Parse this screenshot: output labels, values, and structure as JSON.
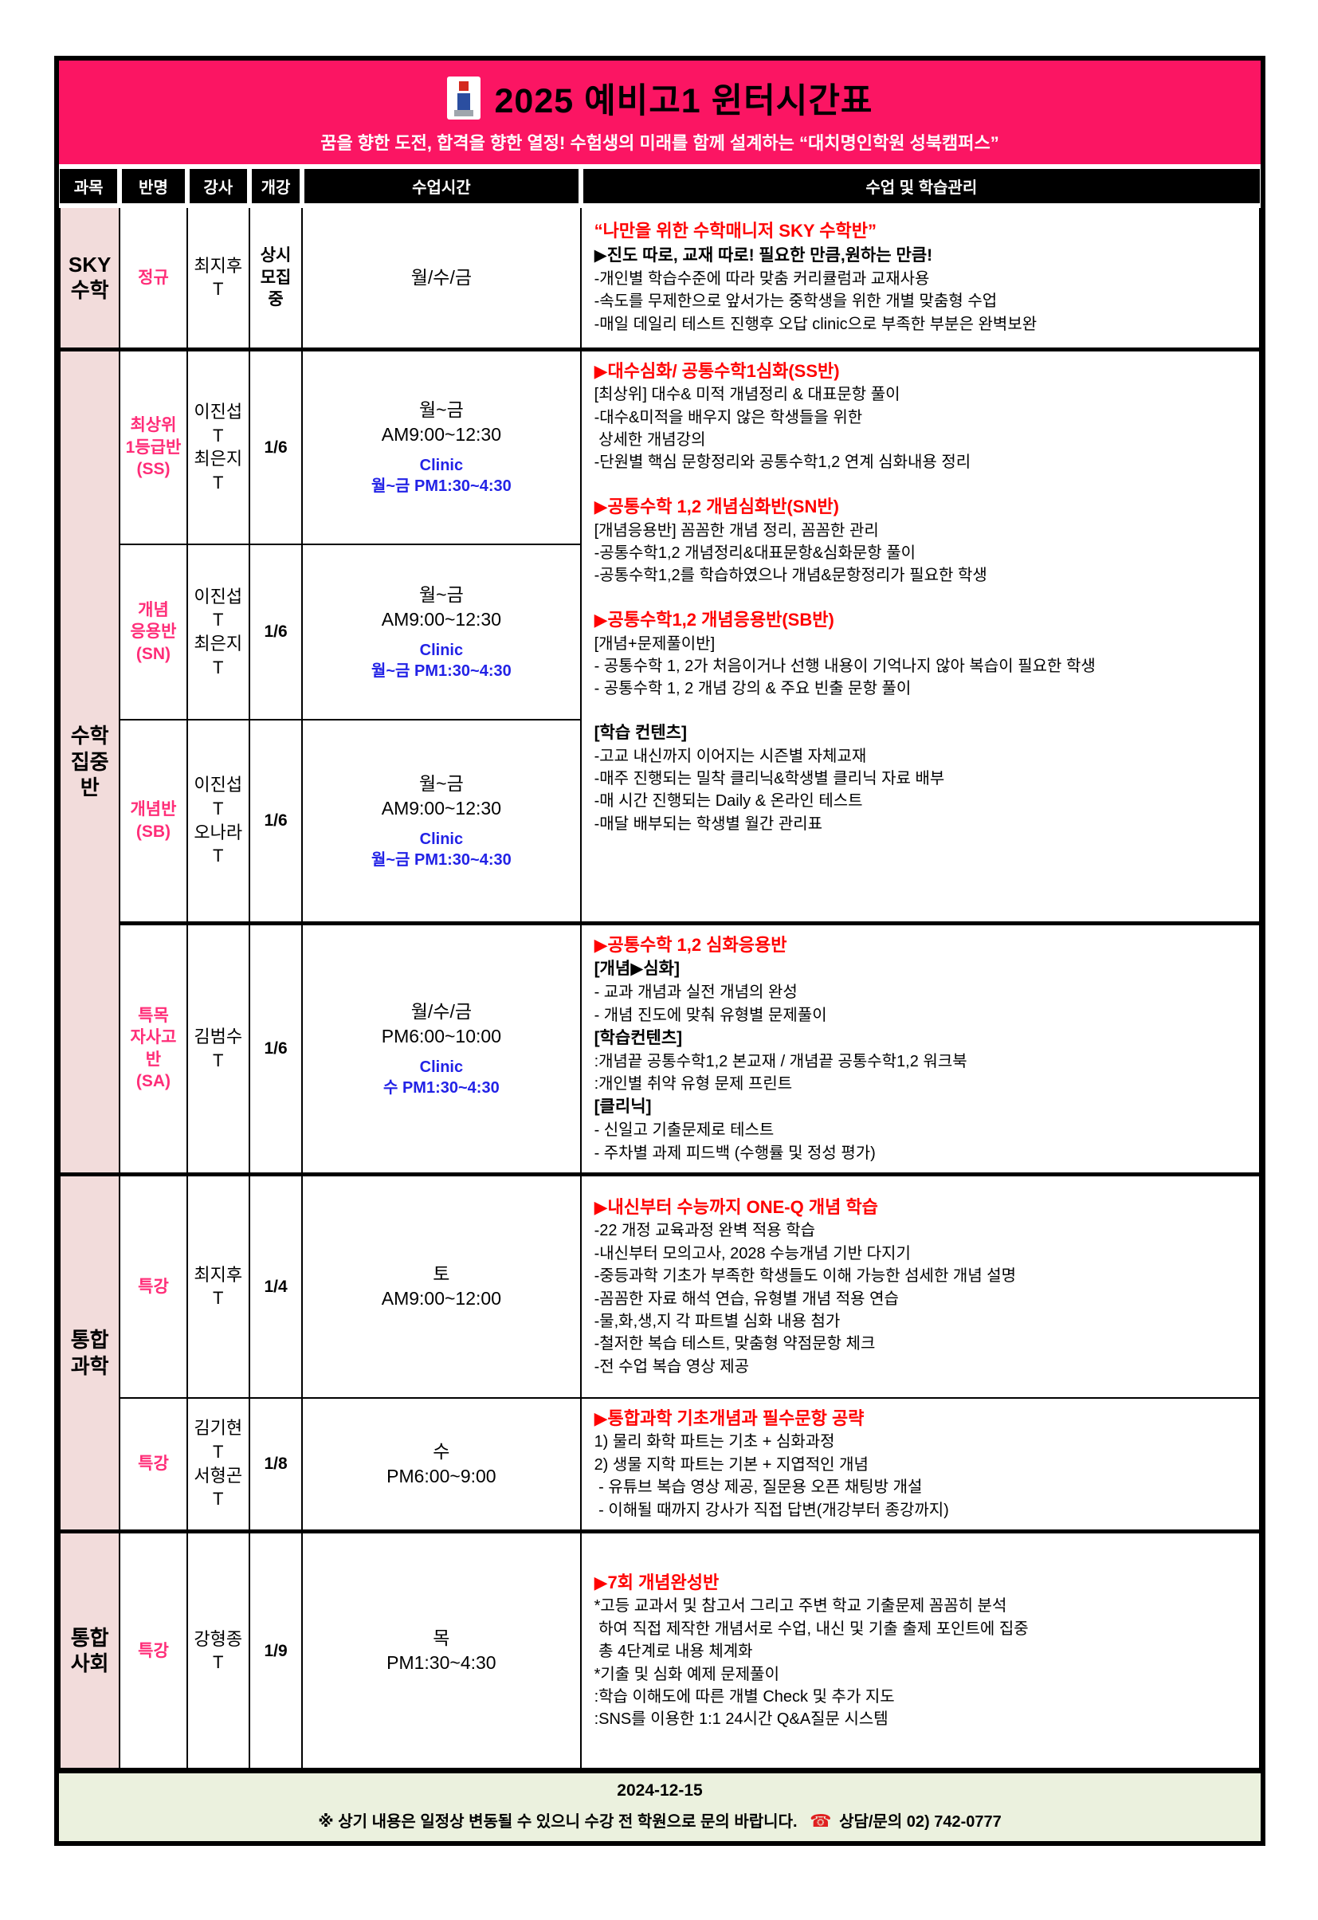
{
  "banner": {
    "title": "2025 예비고1 윈터시간표",
    "subtitle": "꿈을 향한 도전, 합격을 향한 열정! 수험생의 미래를 함께 설계하는 “대치명인학원 성북캠퍼스”"
  },
  "table": {
    "columns": [
      "과목",
      "반명",
      "강사",
      "개강",
      "수업시간",
      "수업 및 학습관리"
    ]
  },
  "rows": {
    "sky": {
      "subject": [
        "SKY",
        "수학"
      ],
      "class_name": "정규",
      "teachers": [
        "최지후T"
      ],
      "start": [
        "상시",
        "모집중"
      ],
      "schedule_main": [
        "월/수/금"
      ],
      "schedule_clinic": [],
      "desc": [
        [
          {
            "s": "r",
            "t": "“나만을 위한 수학매니저 SKY 수학반”"
          },
          {
            "s": "b",
            "t": "▶진도 따로, 교재 따로! 필요한 만큼,원하는 만큼!"
          },
          {
            "s": "n",
            "t": "-개인별 학습수준에 따라 맞춤 커리큘럼과 교재사용"
          },
          {
            "s": "n",
            "t": "-속도를 무제한으로 앞서가는 중학생을 위한 개별 맞춤형 수업"
          },
          {
            "s": "n",
            "t": "-매일 데일리 테스트 진행후 오답 clinic으로 부족한 부분은 완벽보완"
          }
        ]
      ]
    },
    "math_group_subject": [
      "수학",
      "집중반"
    ],
    "ss": {
      "class_name": [
        "최상위",
        "1등급반",
        "(SS)"
      ],
      "teachers": [
        "이진섭T",
        "최은지T"
      ],
      "start": [
        "1/6"
      ],
      "schedule_main": [
        "월~금",
        "AM9:00~12:30"
      ],
      "schedule_clinic": [
        "Clinic",
        "월~금 PM1:30~4:30"
      ]
    },
    "sn": {
      "class_name": [
        "개념",
        "응용반",
        "(SN)"
      ],
      "teachers": [
        "이진섭T",
        "최은지T"
      ],
      "start": [
        "1/6"
      ],
      "schedule_main": [
        "월~금",
        "AM9:00~12:30"
      ],
      "schedule_clinic": [
        "Clinic",
        "월~금 PM1:30~4:30"
      ]
    },
    "sb": {
      "class_name": [
        "개념반",
        "(SB)"
      ],
      "teachers": [
        "이진섭T",
        "오나라T"
      ],
      "start": [
        "1/6"
      ],
      "schedule_main": [
        "월~금",
        "AM9:00~12:30"
      ],
      "schedule_clinic": [
        "Clinic",
        "월~금 PM1:30~4:30"
      ]
    },
    "math_merged_desc": [
      [
        {
          "s": "r",
          "t": "▶대수심화/ 공통수학1심화(SS반)"
        },
        {
          "s": "n",
          "t": "[최상위] 대수& 미적 개념정리 & 대표문항 풀이"
        },
        {
          "s": "n",
          "t": "-대수&미적을 배우지 않은 학생들을 위한"
        },
        {
          "s": "n",
          "t": " 상세한 개념강의"
        },
        {
          "s": "n",
          "t": "-단원별 핵심 문항정리와 공통수학1,2 연계 심화내용 정리"
        }
      ],
      [
        {
          "s": "r",
          "t": "▶공통수학 1,2 개념심화반(SN반)"
        },
        {
          "s": "n",
          "t": "[개념응용반] 꼼꼼한 개념 정리, 꼼꼼한 관리"
        },
        {
          "s": "n",
          "t": "-공통수학1,2 개념정리&대표문항&심화문항 풀이"
        },
        {
          "s": "n",
          "t": "-공통수학1,2를 학습하였으나 개념&문항정리가 필요한 학생"
        }
      ],
      [
        {
          "s": "r",
          "t": "▶공통수학1,2 개념응용반(SB반)"
        },
        {
          "s": "n",
          "t": "[개념+문제풀이반]"
        },
        {
          "s": "n",
          "t": "- 공통수학 1, 2가 처음이거나 선행 내용이 기억나지 않아 복습이 필요한 학생"
        },
        {
          "s": "n",
          "t": "- 공통수학 1, 2 개념 강의 & 주요 빈출 문항 풀이"
        }
      ],
      [
        {
          "s": "b",
          "t": "[학습 컨텐츠]"
        },
        {
          "s": "n",
          "t": "-고교 내신까지 이어지는 시즌별 자체교재"
        },
        {
          "s": "n",
          "t": "-매주 진행되는 밀착 클리닉&학생별 클리닉 자료 배부"
        },
        {
          "s": "n",
          "t": "-매 시간 진행되는 Daily & 온라인 테스트"
        },
        {
          "s": "n",
          "t": "-매달 배부되는 학생별 월간 관리표"
        }
      ]
    ],
    "sa": {
      "class_name": [
        "특목",
        "자사고반",
        "(SA)"
      ],
      "teachers": [
        "김범수T"
      ],
      "start": [
        "1/6"
      ],
      "schedule_main": [
        "월/수/금",
        "PM6:00~10:00"
      ],
      "schedule_clinic": [
        "Clinic",
        "수 PM1:30~4:30"
      ],
      "desc": [
        [
          {
            "s": "r",
            "t": "▶공통수학 1,2 심화응용반"
          },
          {
            "s": "b",
            "t": "[개념▶심화]"
          },
          {
            "s": "n",
            "t": "- 교과 개념과 실전 개념의 완성"
          },
          {
            "s": "n",
            "t": "- 개념 진도에 맞춰 유형별 문제풀이"
          },
          {
            "s": "b",
            "t": "[학습컨텐츠]"
          },
          {
            "s": "n",
            "t": ":개념끝 공통수학1,2 본교재 / 개념끝 공통수학1,2 워크북"
          },
          {
            "s": "n",
            "t": ":개인별 취약 유형 문제 프린트"
          },
          {
            "s": "b",
            "t": "[클리닉]"
          },
          {
            "s": "n",
            "t": "- 신일고 기출문제로 테스트"
          },
          {
            "s": "n",
            "t": "- 주차별 과제 피드백 (수행률 및 정성 평가)"
          }
        ]
      ]
    },
    "sci_group_subject": [
      "통합과학"
    ],
    "sci1": {
      "class_name": [
        "특강"
      ],
      "teachers": [
        "최지후T"
      ],
      "start": [
        "1/4"
      ],
      "schedule_main": [
        "토",
        "AM9:00~12:00"
      ],
      "schedule_clinic": [],
      "desc": [
        [
          {
            "s": "r",
            "t": "▶내신부터 수능까지 ONE-Q 개념 학습"
          },
          {
            "s": "n",
            "t": "-22 개정 교육과정 완벽 적용 학습"
          },
          {
            "s": "n",
            "t": "-내신부터 모의고사, 2028 수능개념 기반 다지기"
          },
          {
            "s": "n",
            "t": "-중등과학 기초가 부족한 학생들도 이해 가능한 섬세한 개념 설명"
          },
          {
            "s": "n",
            "t": "-꼼꼼한 자료 해석 연습, 유형별 개념 적용 연습"
          },
          {
            "s": "n",
            "t": "-물,화,생,지 각 파트별 심화 내용 첨가"
          },
          {
            "s": "n",
            "t": "-철저한 복습 테스트, 맞춤형 약점문항 체크"
          },
          {
            "s": "n",
            "t": "-전 수업 복습 영상 제공"
          }
        ]
      ]
    },
    "sci2": {
      "class_name": [
        "특강"
      ],
      "teachers": [
        "김기현T",
        "서형곤T"
      ],
      "start": [
        "1/8"
      ],
      "schedule_main": [
        "수",
        "PM6:00~9:00"
      ],
      "schedule_clinic": [],
      "desc": [
        [
          {
            "s": "r",
            "t": "▶통합과학 기초개념과 필수문항 공략"
          },
          {
            "s": "n",
            "t": "1) 물리 화학 파트는 기초 + 심화과정"
          },
          {
            "s": "n",
            "t": "2) 생물 지학 파트는 기본 + 지엽적인 개념"
          },
          {
            "s": "n",
            "t": " - 유튜브 복습 영상 제공, 질문용 오픈 채팅방 개설"
          },
          {
            "s": "n",
            "t": " - 이해될 때까지 강사가 직접 답변(개강부터 종강까지)"
          }
        ]
      ]
    },
    "soc_group_subject": [
      "통합사회"
    ],
    "soc": {
      "class_name": [
        "특강"
      ],
      "teachers": [
        "강형종T"
      ],
      "start": [
        "1/9"
      ],
      "schedule_main": [
        "목",
        "PM1:30~4:30"
      ],
      "schedule_clinic": [],
      "desc": [
        [
          {
            "s": "r",
            "t": "▶7회 개념완성반"
          },
          {
            "s": "n",
            "t": "*고등 교과서 및 참고서 그리고 주변 학교 기출문제 꼼꼼히 분석"
          },
          {
            "s": "n",
            "t": " 하여 직접 제작한 개념서로 수업, 내신 및 기출 출제 포인트에 집중"
          },
          {
            "s": "n",
            "t": " 총 4단계로 내용 체계화"
          },
          {
            "s": "n",
            "t": "*기출 및 심화 예제 문제풀이"
          },
          {
            "s": "n",
            "t": ":학습 이해도에 따른 개별 Check 및 추가 지도"
          },
          {
            "s": "n",
            "t": ":SNS를 이용한 1:1 24시간 Q&A질문 시스템"
          }
        ]
      ]
    }
  },
  "footer": {
    "date": "2024-12-15",
    "notice": "※ 상기 내용은 일정상 변동될 수 있으니 수강 전 학원으로 문의 바랍니다.",
    "phone_icon": "☎",
    "contact": "상담/문의 02) 742-0777"
  },
  "colors": {
    "banner_pink": "#FB1563",
    "subject_bg": "#F2DCDB",
    "class_pink": "#FF2D78",
    "title_red": "#FF0000",
    "clinic_blue": "#2222E6",
    "footer_green": "#EBF1DE"
  }
}
